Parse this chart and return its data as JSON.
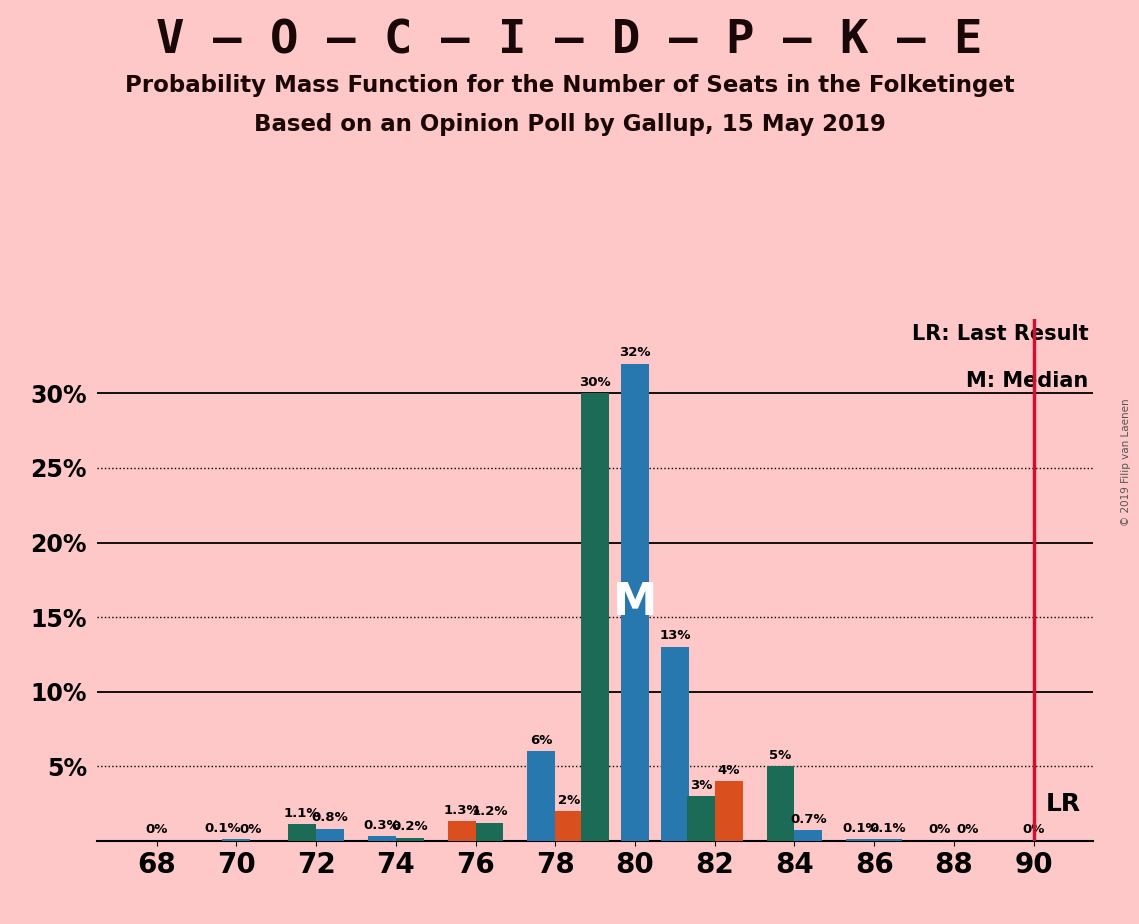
{
  "title1": "V – O – C – I – D – P – K – E",
  "title2": "Probability Mass Function for the Number of Seats in the Folketinget",
  "title3": "Based on an Opinion Poll by Gallup, 15 May 2019",
  "copyright": "© 2019 Filip van Laenen",
  "background_color": "#ffc8c8",
  "bars": [
    {
      "x": 68,
      "val": 0.0,
      "color": "#2878b0"
    },
    {
      "x": 70,
      "val": 0.1,
      "color": "#2878b0"
    },
    {
      "x": 72,
      "val": 1.1,
      "color": "#1b6b56"
    },
    {
      "x": 72,
      "val": 0.8,
      "color": "#2878b0"
    },
    {
      "x": 74,
      "val": 0.3,
      "color": "#2878b0"
    },
    {
      "x": 74,
      "val": 0.2,
      "color": "#1b6b56"
    },
    {
      "x": 76,
      "val": 1.3,
      "color": "#d94f1e"
    },
    {
      "x": 76,
      "val": 1.2,
      "color": "#1b6b56"
    },
    {
      "x": 78,
      "val": 6.0,
      "color": "#2878b0"
    },
    {
      "x": 78,
      "val": 2.0,
      "color": "#d94f1e"
    },
    {
      "x": 79,
      "val": 30.0,
      "color": "#1b6b56"
    },
    {
      "x": 80,
      "val": 32.0,
      "color": "#2878b0"
    },
    {
      "x": 81,
      "val": 13.0,
      "color": "#2878b0"
    },
    {
      "x": 82,
      "val": 3.0,
      "color": "#1b6b56"
    },
    {
      "x": 82,
      "val": 4.0,
      "color": "#d94f1e"
    },
    {
      "x": 84,
      "val": 5.0,
      "color": "#1b6b56"
    },
    {
      "x": 84,
      "val": 0.7,
      "color": "#2878b0"
    },
    {
      "x": 86,
      "val": 0.1,
      "color": "#2878b0"
    },
    {
      "x": 86,
      "val": 0.1,
      "color": "#2878b0"
    },
    {
      "x": 88,
      "val": 0.0,
      "color": "#2878b0"
    },
    {
      "x": 90,
      "val": 0.0,
      "color": "#2878b0"
    }
  ],
  "bar_labels": [
    {
      "x": 68,
      "val": 0.0,
      "text": "0%",
      "side": 0
    },
    {
      "x": 70,
      "val": 0.1,
      "text": "0.1%",
      "side": -1
    },
    {
      "x": 70,
      "val": 0.0,
      "text": "0%",
      "side": 1
    },
    {
      "x": 72,
      "val": 1.1,
      "text": "1.1%",
      "side": -1
    },
    {
      "x": 72,
      "val": 0.8,
      "text": "0.8%",
      "side": 1
    },
    {
      "x": 74,
      "val": 0.3,
      "text": "0.3%",
      "side": -1
    },
    {
      "x": 74,
      "val": 0.2,
      "text": "0.2%",
      "side": 1
    },
    {
      "x": 76,
      "val": 1.3,
      "text": "1.3%",
      "side": -1
    },
    {
      "x": 76,
      "val": 1.2,
      "text": "1.2%",
      "side": 1
    },
    {
      "x": 78,
      "val": 6.0,
      "text": "6%",
      "side": -1
    },
    {
      "x": 78,
      "val": 2.0,
      "text": "2%",
      "side": 1
    },
    {
      "x": 79,
      "val": 30.0,
      "text": "30%",
      "side": 0
    },
    {
      "x": 80,
      "val": 32.0,
      "text": "32%",
      "side": 0
    },
    {
      "x": 81,
      "val": 13.0,
      "text": "13%",
      "side": 0
    },
    {
      "x": 82,
      "val": 3.0,
      "text": "3%",
      "side": -1
    },
    {
      "x": 82,
      "val": 4.0,
      "text": "4%",
      "side": 1
    },
    {
      "x": 84,
      "val": 5.0,
      "text": "5%",
      "side": -1
    },
    {
      "x": 84,
      "val": 0.7,
      "text": "0.7%",
      "side": 1
    },
    {
      "x": 86,
      "val": 0.1,
      "text": "0.1%",
      "side": -1
    },
    {
      "x": 86,
      "val": 0.1,
      "text": "0.1%",
      "side": 1
    },
    {
      "x": 88,
      "val": 0.0,
      "text": "0%",
      "side": -1
    },
    {
      "x": 88,
      "val": 0.0,
      "text": "0%",
      "side": 1
    },
    {
      "x": 90,
      "val": 0.0,
      "text": "0%",
      "side": 0
    }
  ],
  "xtick_positions": [
    68,
    70,
    72,
    74,
    76,
    78,
    80,
    82,
    84,
    86,
    88,
    90
  ],
  "ytick_values": [
    0,
    5,
    10,
    15,
    20,
    25,
    30
  ],
  "ytick_labels": [
    "",
    "5%",
    "10%",
    "15%",
    "20%",
    "25%",
    "30%"
  ],
  "solid_hlines": [
    10,
    20,
    30
  ],
  "dotted_hlines": [
    5,
    15,
    25
  ],
  "ylim": [
    0,
    35
  ],
  "xlim": [
    66.5,
    91.5
  ],
  "lr_x": 90,
  "lr_color": "#cc1133",
  "median_x": 80,
  "median_y": 16,
  "median_label": "M",
  "lr_label": "LR",
  "lr_legend": "LR: Last Result",
  "m_legend": "M: Median",
  "bar_width": 0.7
}
